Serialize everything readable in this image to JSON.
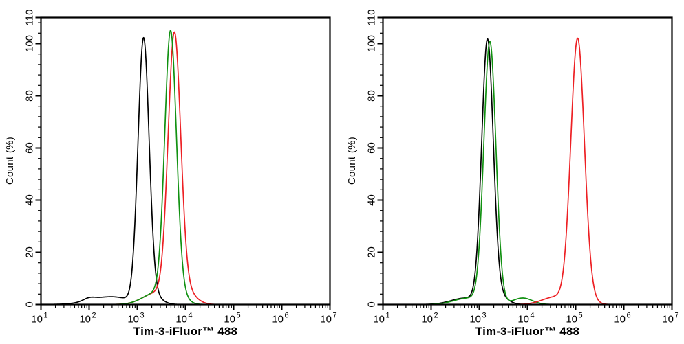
{
  "figure": {
    "background": "#ffffff",
    "frame_color": "#000000",
    "text_color": "#000000",
    "panel_count": 2
  },
  "chart_data": [
    {
      "panel": "left",
      "type": "line",
      "title": "",
      "xlabel": "Tim-3-iFluor™ 488",
      "ylabel": "Count (%)",
      "x_scale": "log10",
      "xlim_exp": [
        1,
        7
      ],
      "ylim": [
        0,
        110
      ],
      "x_major_ticks_exp": [
        1,
        2,
        3,
        4,
        5,
        6,
        7
      ],
      "x_tick_base": "10",
      "y_major_ticks": [
        0,
        20,
        40,
        60,
        80,
        100,
        110
      ],
      "y_minor_step": 4,
      "grid": false,
      "legend": null,
      "series": [
        {
          "name": "series-black",
          "color": "#000000",
          "peak_x": 1350,
          "peak_y": 100,
          "log_gaussians": [
            {
              "mu": 3.13,
              "sigma": 0.115,
              "amp": 100
            },
            {
              "mu": 3.33,
              "sigma": 0.17,
              "amp": 3
            },
            {
              "mu": 2.45,
              "sigma": 0.42,
              "amp": 3.0
            },
            {
              "mu": 2.0,
              "sigma": 0.12,
              "amp": 1.0
            }
          ]
        },
        {
          "name": "series-red",
          "color": "#ed2024",
          "peak_x": 5900,
          "peak_y": 100,
          "log_gaussians": [
            {
              "mu": 3.77,
              "sigma": 0.13,
              "amp": 100
            },
            {
              "mu": 3.4,
              "sigma": 0.28,
              "amp": 4.5
            },
            {
              "mu": 4.0,
              "sigma": 0.2,
              "amp": 5
            }
          ]
        },
        {
          "name": "series-green",
          "color": "#119111",
          "peak_x": 4900,
          "peak_y": 100,
          "log_gaussians": [
            {
              "mu": 3.69,
              "sigma": 0.12,
              "amp": 100
            },
            {
              "mu": 3.4,
              "sigma": 0.28,
              "amp": 4.5
            },
            {
              "mu": 3.85,
              "sigma": 0.16,
              "amp": 4
            }
          ]
        }
      ]
    },
    {
      "panel": "right",
      "type": "line",
      "title": "",
      "xlabel": "Tim-3-iFluor™ 488",
      "ylabel": "Count (%)",
      "x_scale": "log10",
      "xlim_exp": [
        1,
        7
      ],
      "ylim": [
        0,
        110
      ],
      "x_major_ticks_exp": [
        1,
        2,
        3,
        4,
        5,
        6,
        7
      ],
      "x_tick_base": "10",
      "y_major_ticks": [
        0,
        20,
        40,
        60,
        80,
        100,
        110
      ],
      "y_minor_step": 4,
      "grid": false,
      "legend": null,
      "series": [
        {
          "name": "series-black",
          "color": "#000000",
          "peak_x": 1500,
          "peak_y": 100,
          "log_gaussians": [
            {
              "mu": 3.17,
              "sigma": 0.12,
              "amp": 100
            },
            {
              "mu": 2.72,
              "sigma": 0.3,
              "amp": 2.5
            },
            {
              "mu": 3.42,
              "sigma": 0.17,
              "amp": 3
            }
          ]
        },
        {
          "name": "series-green",
          "color": "#119111",
          "peak_x": 1700,
          "peak_y": 100,
          "log_gaussians": [
            {
              "mu": 3.22,
              "sigma": 0.125,
              "amp": 100
            },
            {
              "mu": 2.78,
              "sigma": 0.3,
              "amp": 2.5
            },
            {
              "mu": 3.9,
              "sigma": 0.2,
              "amp": 2.5
            }
          ]
        },
        {
          "name": "series-red",
          "color": "#ed2024",
          "peak_x": 110000,
          "peak_y": 100,
          "log_gaussians": [
            {
              "mu": 5.04,
              "sigma": 0.14,
              "amp": 100
            },
            {
              "mu": 4.6,
              "sigma": 0.28,
              "amp": 3
            },
            {
              "mu": 5.23,
              "sigma": 0.16,
              "amp": 2.5
            }
          ]
        }
      ]
    }
  ]
}
